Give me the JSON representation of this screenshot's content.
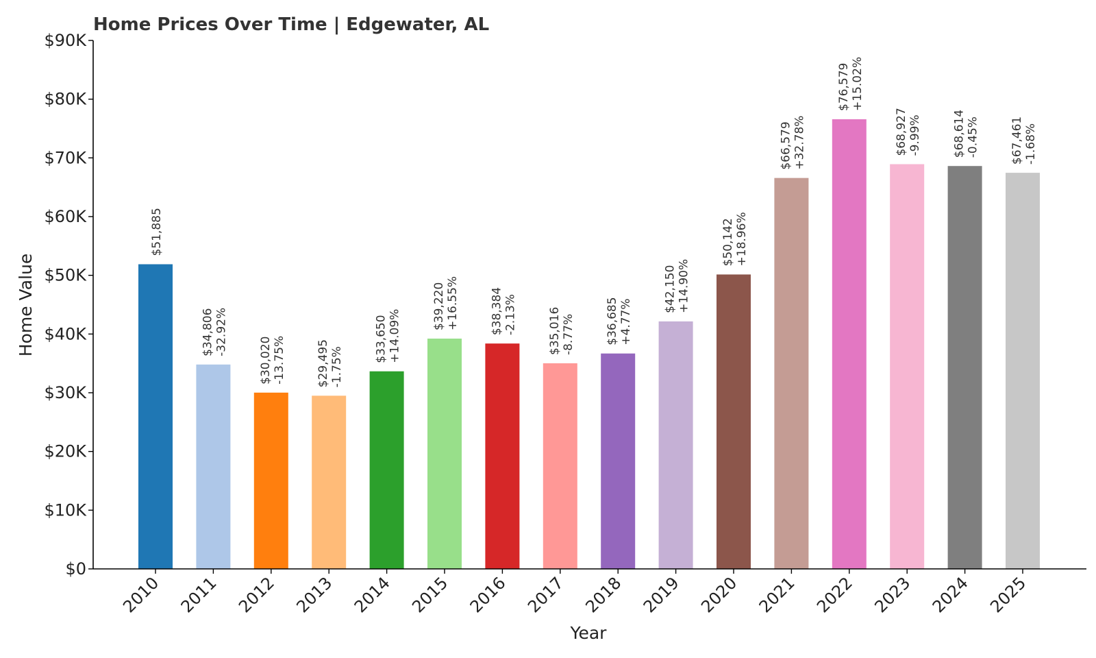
{
  "chart_data": {
    "type": "bar",
    "title": "Home Prices Over Time | Edgewater, AL",
    "xlabel": "Year",
    "ylabel": "Home Value",
    "ylim": [
      0,
      90000
    ],
    "yticks": [
      {
        "value": 0,
        "label": "$0"
      },
      {
        "value": 10000,
        "label": "$10K"
      },
      {
        "value": 20000,
        "label": "$20K"
      },
      {
        "value": 30000,
        "label": "$30K"
      },
      {
        "value": 40000,
        "label": "$40K"
      },
      {
        "value": 50000,
        "label": "$50K"
      },
      {
        "value": 60000,
        "label": "$60K"
      },
      {
        "value": 70000,
        "label": "$70K"
      },
      {
        "value": 80000,
        "label": "$80K"
      },
      {
        "value": 90000,
        "label": "$90K"
      }
    ],
    "grid": false,
    "bars": [
      {
        "year": "2010",
        "value": 51885,
        "value_label": "$51,885",
        "change_label": "",
        "color": "#1f77b4"
      },
      {
        "year": "2011",
        "value": 34806,
        "value_label": "$34,806",
        "change_label": "-32.92%",
        "color": "#aec7e8"
      },
      {
        "year": "2012",
        "value": 30020,
        "value_label": "$30,020",
        "change_label": "-13.75%",
        "color": "#ff7f0e"
      },
      {
        "year": "2013",
        "value": 29495,
        "value_label": "$29,495",
        "change_label": "-1.75%",
        "color": "#ffbb78"
      },
      {
        "year": "2014",
        "value": 33650,
        "value_label": "$33,650",
        "change_label": "+14.09%",
        "color": "#2ca02c"
      },
      {
        "year": "2015",
        "value": 39220,
        "value_label": "$39,220",
        "change_label": "+16.55%",
        "color": "#98df8a"
      },
      {
        "year": "2016",
        "value": 38384,
        "value_label": "$38,384",
        "change_label": "-2.13%",
        "color": "#d62728"
      },
      {
        "year": "2017",
        "value": 35016,
        "value_label": "$35,016",
        "change_label": "-8.77%",
        "color": "#ff9896"
      },
      {
        "year": "2018",
        "value": 36685,
        "value_label": "$36,685",
        "change_label": "+4.77%",
        "color": "#9467bd"
      },
      {
        "year": "2019",
        "value": 42150,
        "value_label": "$42,150",
        "change_label": "+14.90%",
        "color": "#c5b0d5"
      },
      {
        "year": "2020",
        "value": 50142,
        "value_label": "$50,142",
        "change_label": "+18.96%",
        "color": "#8c564b"
      },
      {
        "year": "2021",
        "value": 66579,
        "value_label": "$66,579",
        "change_label": "+32.78%",
        "color": "#c49c94"
      },
      {
        "year": "2022",
        "value": 76579,
        "value_label": "$76,579",
        "change_label": "+15.02%",
        "color": "#e377c2"
      },
      {
        "year": "2023",
        "value": 68927,
        "value_label": "$68,927",
        "change_label": "-9.99%",
        "color": "#f7b6d2"
      },
      {
        "year": "2024",
        "value": 68614,
        "value_label": "$68,614",
        "change_label": "-0.45%",
        "color": "#7f7f7f"
      },
      {
        "year": "2025",
        "value": 67461,
        "value_label": "$67,461",
        "change_label": "-1.68%",
        "color": "#c7c7c7"
      }
    ]
  }
}
